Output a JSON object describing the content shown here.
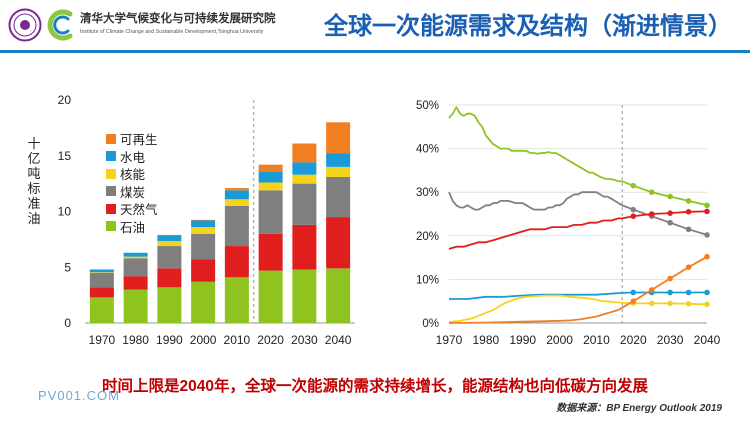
{
  "header": {
    "institute_name": "清华大学气候变化与可持续发展研究院",
    "institute_english": "Institute of Climate Change and Sustainable Development,Tsinghua University",
    "slide_title": "全球一次能源需求及结构（渐进情景）",
    "logo_colors": {
      "seal": "#7a2a8c",
      "c_green": "#8dc63f",
      "c_blue": "#1a7fc4"
    }
  },
  "chart_data": [
    {
      "type": "bar",
      "stacked": true,
      "ylabel": "十亿吨标准油",
      "ylim": [
        0,
        20
      ],
      "yticks": [
        0,
        5,
        10,
        15,
        20
      ],
      "categories": [
        "1970",
        "1980",
        "1990",
        "2000",
        "2010",
        "2020",
        "2030",
        "2040"
      ],
      "divider_between": [
        "2010",
        "2020"
      ],
      "legend_position": "inside-left",
      "series": [
        {
          "name": "石油",
          "color": "#8fc31f",
          "values": [
            2.3,
            3.0,
            3.2,
            3.7,
            4.1,
            4.7,
            4.8,
            4.9
          ]
        },
        {
          "name": "天然气",
          "color": "#e01e1e",
          "values": [
            0.9,
            1.2,
            1.7,
            2.0,
            2.8,
            3.3,
            4.0,
            4.6
          ]
        },
        {
          "name": "煤炭",
          "color": "#7f7f7f",
          "values": [
            1.3,
            1.6,
            2.0,
            2.3,
            3.6,
            3.9,
            3.7,
            3.6
          ]
        },
        {
          "name": "核能",
          "color": "#f5d31a",
          "values": [
            0.05,
            0.15,
            0.45,
            0.6,
            0.6,
            0.7,
            0.8,
            0.9
          ]
        },
        {
          "name": "水电",
          "color": "#1a9ad6",
          "values": [
            0.25,
            0.35,
            0.5,
            0.6,
            0.8,
            1.0,
            1.1,
            1.2
          ]
        },
        {
          "name": "可再生",
          "color": "#f07f22",
          "values": [
            0.0,
            0.0,
            0.05,
            0.05,
            0.2,
            0.6,
            1.7,
            2.8
          ]
        }
      ]
    },
    {
      "type": "line",
      "xlim": [
        1970,
        2040
      ],
      "xticks": [
        1970,
        1980,
        1990,
        2000,
        2010,
        2020,
        2030,
        2040
      ],
      "ylim": [
        0,
        50
      ],
      "yticks": [
        "0%",
        "10%",
        "20%",
        "30%",
        "40%",
        "50%"
      ],
      "forecast_start": 2017,
      "series": [
        {
          "color": "#8fc31f",
          "x": [
            1970,
            1971,
            1972,
            1973,
            1974,
            1975,
            1976,
            1977,
            1978,
            1979,
            1980,
            1981,
            1982,
            1983,
            1984,
            1985,
            1986,
            1987,
            1988,
            1989,
            1990,
            1991,
            1992,
            1993,
            1994,
            1995,
            1996,
            1997,
            1998,
            1999,
            2000,
            2001,
            2002,
            2003,
            2004,
            2005,
            2006,
            2007,
            2008,
            2009,
            2010,
            2011,
            2012,
            2013,
            2014,
            2015,
            2016,
            2017,
            2020,
            2025,
            2030,
            2035,
            2040
          ],
          "y": [
            47,
            48,
            49.5,
            48,
            47.5,
            48,
            48,
            47.5,
            46,
            45,
            43,
            42,
            41,
            40.5,
            40,
            40,
            40,
            39.5,
            39.5,
            39.5,
            39.5,
            39.5,
            39,
            39,
            38.8,
            39,
            39,
            39.2,
            39,
            39,
            38.5,
            38,
            37.5,
            37,
            36.5,
            36,
            35.5,
            35,
            34.5,
            34.5,
            34,
            33.5,
            33.2,
            33,
            33,
            32.8,
            32.5,
            32.5,
            31.5,
            30,
            29,
            28,
            27
          ]
        },
        {
          "color": "#7f7f7f",
          "x": [
            1970,
            1971,
            1972,
            1973,
            1974,
            1975,
            1976,
            1977,
            1978,
            1979,
            1980,
            1981,
            1982,
            1983,
            1984,
            1985,
            1986,
            1987,
            1988,
            1989,
            1990,
            1991,
            1992,
            1993,
            1994,
            1995,
            1996,
            1997,
            1998,
            1999,
            2000,
            2001,
            2002,
            2003,
            2004,
            2005,
            2006,
            2007,
            2008,
            2009,
            2010,
            2011,
            2012,
            2013,
            2014,
            2015,
            2016,
            2017,
            2020,
            2025,
            2030,
            2035,
            2040
          ],
          "y": [
            30,
            28,
            27,
            26.5,
            26.5,
            27,
            26.5,
            26,
            26,
            26.5,
            27,
            27,
            27.5,
            27.5,
            28,
            28,
            28,
            27.8,
            27.5,
            27.5,
            27.5,
            27,
            26.5,
            26,
            26,
            26,
            26,
            26.5,
            26.5,
            27,
            27,
            27.5,
            28.5,
            29,
            29.5,
            29.5,
            30,
            30,
            30,
            30,
            30,
            29.5,
            29,
            29,
            28.5,
            28,
            27.5,
            27,
            26,
            24.5,
            23,
            21.5,
            20.2
          ]
        },
        {
          "color": "#e01e1e",
          "x": [
            1970,
            1972,
            1974,
            1976,
            1978,
            1980,
            1982,
            1984,
            1986,
            1988,
            1990,
            1992,
            1994,
            1996,
            1998,
            2000,
            2002,
            2004,
            2006,
            2008,
            2010,
            2012,
            2014,
            2016,
            2017,
            2020,
            2025,
            2030,
            2035,
            2040
          ],
          "y": [
            17,
            17.5,
            17.5,
            18,
            18.5,
            18.5,
            19,
            19.5,
            20,
            20.5,
            21,
            21.5,
            21.5,
            21.5,
            22,
            22,
            22,
            22.5,
            22.5,
            23,
            23,
            23.5,
            23.5,
            24,
            24,
            24.5,
            25,
            25.2,
            25.5,
            25.6
          ]
        },
        {
          "color": "#1a9ad6",
          "x": [
            1970,
            1975,
            1980,
            1985,
            1990,
            1995,
            2000,
            2005,
            2010,
            2015,
            2017,
            2020,
            2025,
            2030,
            2035,
            2040
          ],
          "y": [
            5.5,
            5.5,
            6,
            6,
            6.3,
            6.5,
            6.5,
            6.5,
            6.5,
            6.8,
            6.9,
            7,
            7,
            7,
            7,
            7
          ]
        },
        {
          "color": "#f5d31a",
          "x": [
            1970,
            1973,
            1976,
            1979,
            1982,
            1985,
            1988,
            1991,
            1994,
            1997,
            2000,
            2003,
            2006,
            2009,
            2012,
            2015,
            2017,
            2020,
            2025,
            2030,
            2035,
            2040
          ],
          "y": [
            0.2,
            0.5,
            1,
            2,
            3,
            4.5,
            5.5,
            6,
            6.2,
            6.3,
            6.3,
            6,
            5.8,
            5.5,
            5,
            4.8,
            4.6,
            4.5,
            4.5,
            4.5,
            4.4,
            4.3
          ]
        },
        {
          "color": "#f07f22",
          "x": [
            1970,
            1980,
            1990,
            1995,
            2000,
            2003,
            2006,
            2008,
            2010,
            2012,
            2014,
            2016,
            2017,
            2020,
            2025,
            2030,
            2035,
            2040
          ],
          "y": [
            0,
            0.1,
            0.3,
            0.4,
            0.5,
            0.6,
            0.9,
            1.2,
            1.5,
            2,
            2.5,
            3,
            3.5,
            5,
            7.6,
            10.2,
            12.8,
            15.2
          ]
        }
      ]
    }
  ],
  "conclusion": "时间上限是2040年，全球一次能源的需求持续增长，能源结构也向低碳方向发展",
  "watermark": "PV001.COM",
  "source": "数据来源：BP Energy Outlook 2019"
}
